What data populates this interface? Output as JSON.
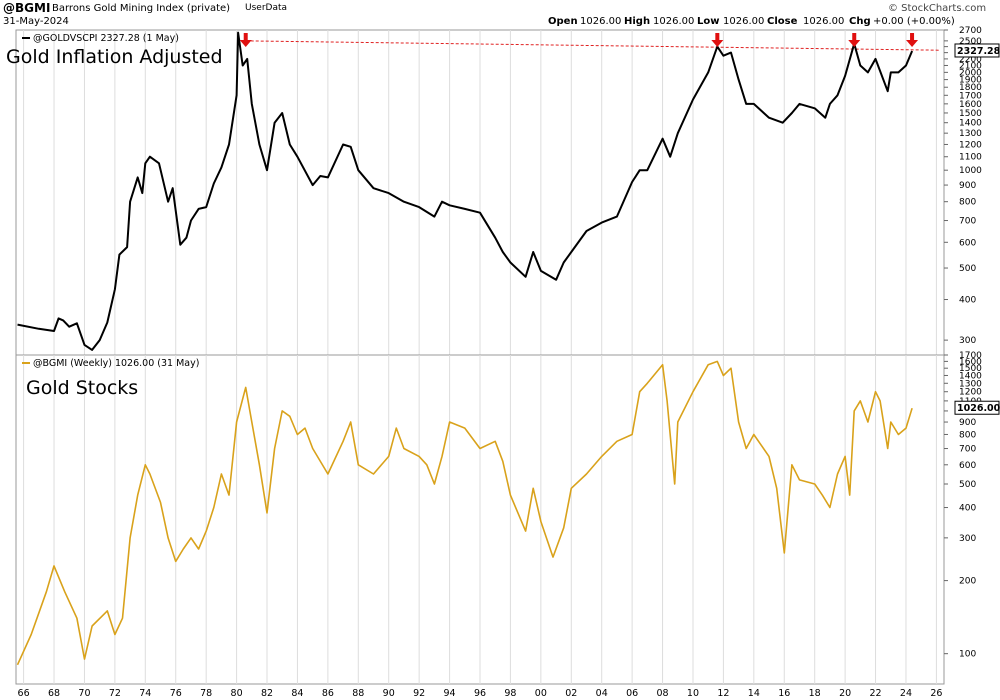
{
  "header": {
    "symbol": "@BGMI",
    "name": "Barrons Gold Mining Index (private)",
    "userdata": "UserData",
    "date": "31-May-2024",
    "copyright": "© StockCharts.com",
    "ohlc": {
      "open_label": "Open",
      "open": "1026.00",
      "high_label": "High",
      "high": "1026.00",
      "low_label": "Low",
      "low": "1026.00",
      "close_label": "Close",
      "close": "1026.00",
      "chg_label": "Chg",
      "chg": "+0.00 (+0.00%)"
    }
  },
  "colors": {
    "gold_line": "#d9a21b",
    "inflation_line": "#000000",
    "resistance": "#e02020",
    "arrow": "#e01010",
    "grid": "#dddddd"
  },
  "chart_data": [
    {
      "type": "line",
      "panel": "top",
      "title": "Gold Inflation Adjusted",
      "series_label": "@GOLDVSCPI 2327.28 (1 May)",
      "last_value_label": "2327.28",
      "yscale": "log",
      "ylim": [
        270,
        2700
      ],
      "xlim": [
        1965.5,
        2026.5
      ],
      "yticks": [
        300,
        400,
        500,
        600,
        700,
        800,
        900,
        1000,
        1100,
        1200,
        1300,
        1400,
        1500,
        1600,
        1700,
        1800,
        1900,
        2000,
        2100,
        2200,
        2300,
        2400,
        2500,
        2700
      ],
      "resistance_line": {
        "x": [
          1980.6,
          2026.2
        ],
        "y": [
          2500,
          2340
        ]
      },
      "arrows_x": [
        1980.6,
        2011.6,
        2020.6,
        2024.4
      ],
      "series": [
        {
          "name": "@GOLDVSCPI",
          "x": [
            1965.6,
            1967.0,
            1968.0,
            1968.3,
            1968.6,
            1969.0,
            1969.5,
            1970.0,
            1970.5,
            1971.0,
            1971.5,
            1972.0,
            1972.3,
            1972.8,
            1973.0,
            1973.5,
            1973.8,
            1974.0,
            1974.3,
            1974.9,
            1975.5,
            1975.8,
            1976.3,
            1976.7,
            1977.0,
            1977.5,
            1978.0,
            1978.5,
            1979.0,
            1979.5,
            1980.0,
            1980.1,
            1980.4,
            1980.7,
            1981.0,
            1981.5,
            1982.0,
            1982.5,
            1983.0,
            1983.5,
            1984.0,
            1985.0,
            1985.5,
            1986.0,
            1987.0,
            1987.5,
            1988.0,
            1989.0,
            1990.0,
            1991.0,
            1992.0,
            1993.0,
            1993.5,
            1994.0,
            1995.0,
            1996.0,
            1997.0,
            1997.5,
            1998.0,
            1999.0,
            1999.5,
            2000.0,
            2001.0,
            2001.5,
            2002.0,
            2003.0,
            2004.0,
            2005.0,
            2006.0,
            2006.5,
            2007.0,
            2008.0,
            2008.5,
            2009.0,
            2010.0,
            2011.0,
            2011.6,
            2012.0,
            2012.5,
            2013.0,
            2013.5,
            2014.0,
            2015.0,
            2015.9,
            2016.5,
            2017.0,
            2018.0,
            2018.7,
            2019.0,
            2019.5,
            2020.0,
            2020.6,
            2021.0,
            2021.5,
            2022.0,
            2022.8,
            2023.0,
            2023.5,
            2024.0,
            2024.4
          ],
          "y": [
            335,
            325,
            320,
            350,
            345,
            330,
            338,
            290,
            280,
            300,
            340,
            430,
            550,
            580,
            800,
            950,
            850,
            1050,
            1100,
            1050,
            800,
            880,
            590,
            620,
            700,
            760,
            770,
            910,
            1020,
            1200,
            1700,
            2650,
            2100,
            2200,
            1600,
            1200,
            1000,
            1400,
            1500,
            1200,
            1100,
            900,
            960,
            950,
            1200,
            1180,
            1000,
            880,
            850,
            800,
            770,
            720,
            800,
            780,
            760,
            740,
            620,
            560,
            520,
            470,
            560,
            490,
            460,
            520,
            560,
            650,
            690,
            720,
            920,
            1000,
            1000,
            1250,
            1100,
            1300,
            1650,
            2000,
            2400,
            2250,
            2300,
            1900,
            1600,
            1600,
            1450,
            1400,
            1500,
            1600,
            1550,
            1450,
            1600,
            1700,
            1950,
            2450,
            2100,
            2000,
            2200,
            1750,
            2000,
            2000,
            2100,
            2327
          ]
        }
      ]
    },
    {
      "type": "line",
      "panel": "bottom",
      "title": "Gold Stocks",
      "series_label": "@BGMI (Weekly) 1026.00 (31 May)",
      "last_value_label": "1026.00",
      "yscale": "log",
      "ylim": [
        75,
        1700
      ],
      "xlim": [
        1965.5,
        2026.5
      ],
      "yticks": [
        100,
        200,
        300,
        400,
        500,
        600,
        700,
        800,
        900,
        1000,
        1100,
        1200,
        1300,
        1400,
        1500,
        1600,
        1700
      ],
      "xticks": [
        1966,
        1968,
        1970,
        1972,
        1974,
        1976,
        1978,
        1980,
        1982,
        1984,
        1986,
        1988,
        1990,
        1992,
        1994,
        1996,
        1998,
        2000,
        2002,
        2004,
        2006,
        2008,
        2010,
        2012,
        2014,
        2016,
        2018,
        2020,
        2022,
        2024,
        2026
      ],
      "xtick_labels": [
        "66",
        "68",
        "70",
        "72",
        "74",
        "76",
        "78",
        "80",
        "82",
        "84",
        "86",
        "88",
        "90",
        "92",
        "94",
        "96",
        "98",
        "00",
        "02",
        "04",
        "06",
        "08",
        "10",
        "12",
        "14",
        "16",
        "18",
        "20",
        "22",
        "24",
        "26"
      ],
      "series": [
        {
          "name": "@BGMI",
          "x": [
            1965.6,
            1966.5,
            1967.5,
            1968.0,
            1968.7,
            1969.5,
            1970.0,
            1970.5,
            1971.5,
            1972.0,
            1972.5,
            1973.0,
            1973.5,
            1974.0,
            1974.3,
            1975.0,
            1975.5,
            1976.0,
            1976.5,
            1977.0,
            1977.5,
            1978.0,
            1978.5,
            1979.0,
            1979.5,
            1980.0,
            1980.6,
            1981.0,
            1981.5,
            1982.0,
            1982.5,
            1983.0,
            1983.5,
            1984.0,
            1984.5,
            1985.0,
            1986.0,
            1987.0,
            1987.5,
            1988.0,
            1989.0,
            1990.0,
            1990.5,
            1991.0,
            1992.0,
            1992.5,
            1993.0,
            1993.5,
            1994.0,
            1995.0,
            1996.0,
            1997.0,
            1997.5,
            1998.0,
            1999.0,
            1999.5,
            2000.0,
            2000.8,
            2001.5,
            2002.0,
            2003.0,
            2004.0,
            2005.0,
            2006.0,
            2006.5,
            2007.0,
            2008.0,
            2008.3,
            2008.8,
            2009.0,
            2010.0,
            2011.0,
            2011.6,
            2012.0,
            2012.5,
            2013.0,
            2013.5,
            2014.0,
            2015.0,
            2015.5,
            2016.0,
            2016.5,
            2017.0,
            2018.0,
            2018.5,
            2019.0,
            2019.5,
            2020.0,
            2020.3,
            2020.6,
            2021.0,
            2021.5,
            2022.0,
            2022.3,
            2022.8,
            2023.0,
            2023.5,
            2024.0,
            2024.4
          ],
          "y": [
            90,
            120,
            180,
            230,
            180,
            140,
            95,
            130,
            150,
            120,
            140,
            300,
            450,
            600,
            550,
            420,
            300,
            240,
            270,
            300,
            270,
            320,
            400,
            550,
            450,
            900,
            1250,
            900,
            600,
            380,
            700,
            1000,
            950,
            800,
            850,
            700,
            550,
            750,
            900,
            600,
            550,
            650,
            850,
            700,
            650,
            600,
            500,
            650,
            900,
            850,
            700,
            750,
            620,
            450,
            320,
            480,
            350,
            250,
            330,
            480,
            550,
            650,
            750,
            800,
            1200,
            1300,
            1550,
            1100,
            500,
            900,
            1200,
            1550,
            1600,
            1400,
            1500,
            900,
            700,
            800,
            650,
            480,
            260,
            600,
            520,
            500,
            450,
            400,
            550,
            650,
            450,
            1000,
            1100,
            900,
            1200,
            1100,
            700,
            900,
            800,
            850,
            1026
          ]
        }
      ]
    }
  ]
}
